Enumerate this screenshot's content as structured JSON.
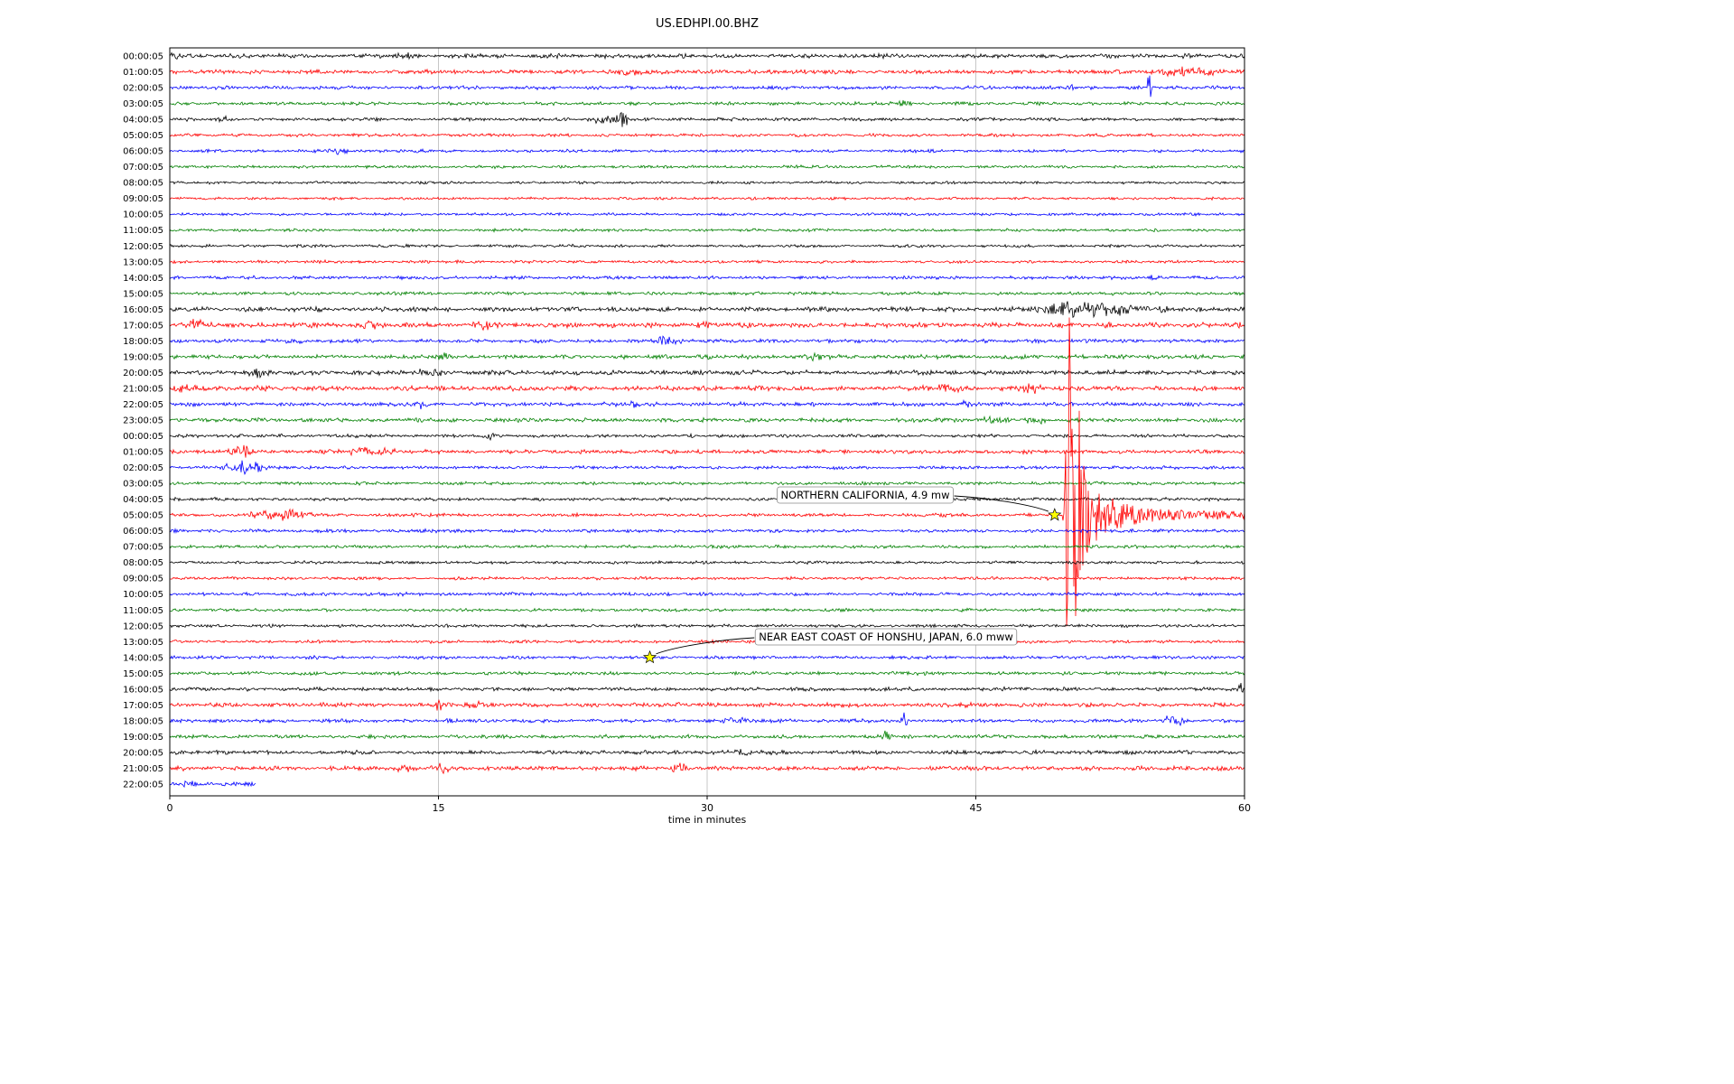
{
  "chart_data": {
    "type": "line",
    "subtype": "seismogram_helicorder_dayplot",
    "title": "US.EDHPI.00.BHZ",
    "xlabel": "time in minutes",
    "x_ticks": [
      0,
      15,
      30,
      45,
      60
    ],
    "xlim": [
      0,
      60
    ],
    "minutes_per_row": 60,
    "trace_color_cycle": [
      "#000000",
      "#ff0000",
      "#0000ff",
      "#008000"
    ],
    "grid_color": "#b9b9b9",
    "frame_color": "#000000",
    "star_color": "#ffff00",
    "rows": [
      {
        "label": "00:00:05",
        "amp": 2.5,
        "bursts": [
          [
            0.35,
            0.3,
            5
          ],
          [
            13.2,
            0.5,
            4
          ]
        ]
      },
      {
        "label": "01:00:05",
        "amp": 2.5,
        "bursts": [
          [
            26,
            0.7,
            6
          ],
          [
            56.6,
            1.0,
            7
          ],
          [
            58.2,
            0.4,
            5
          ]
        ]
      },
      {
        "label": "02:00:05",
        "amp": 2.2,
        "bursts": [
          [
            50,
            0.5,
            4
          ],
          [
            54.7,
            0.12,
            20
          ]
        ]
      },
      {
        "label": "03:00:05",
        "amp": 2.0,
        "bursts": [
          [
            41,
            0.4,
            5
          ]
        ]
      },
      {
        "label": "04:00:05",
        "amp": 2.0,
        "bursts": [
          [
            3,
            0.4,
            4
          ],
          [
            24.3,
            0.6,
            6
          ],
          [
            25.3,
            0.25,
            12
          ]
        ]
      },
      {
        "label": "05:00:05",
        "amp": 1.8,
        "bursts": []
      },
      {
        "label": "06:00:05",
        "amp": 1.8,
        "bursts": [
          [
            9.5,
            0.5,
            3
          ]
        ]
      },
      {
        "label": "07:00:05",
        "amp": 1.8,
        "bursts": []
      },
      {
        "label": "08:00:05",
        "amp": 1.6,
        "bursts": []
      },
      {
        "label": "09:00:05",
        "amp": 1.6,
        "bursts": []
      },
      {
        "label": "10:00:05",
        "amp": 1.7,
        "bursts": []
      },
      {
        "label": "11:00:05",
        "amp": 1.7,
        "bursts": []
      },
      {
        "label": "12:00:05",
        "amp": 1.7,
        "bursts": []
      },
      {
        "label": "13:00:05",
        "amp": 1.7,
        "bursts": []
      },
      {
        "label": "14:00:05",
        "amp": 2.0,
        "bursts": [
          [
            55,
            0.3,
            4
          ]
        ]
      },
      {
        "label": "15:00:05",
        "amp": 2.0,
        "bursts": []
      },
      {
        "label": "16:00:05",
        "amp": 2.8,
        "bursts": [
          [
            50.3,
            1.2,
            11
          ],
          [
            51.8,
            1.8,
            7
          ],
          [
            55.5,
            0.12,
            9
          ]
        ]
      },
      {
        "label": "17:00:05",
        "amp": 3.0,
        "bursts": [
          [
            1.5,
            0.7,
            6
          ],
          [
            11,
            0.5,
            5
          ],
          [
            17.5,
            0.4,
            5
          ],
          [
            30,
            0.5,
            5
          ]
        ]
      },
      {
        "label": "18:00:05",
        "amp": 2.2,
        "bursts": [
          [
            7,
            0.5,
            4
          ],
          [
            27.8,
            0.45,
            8
          ]
        ]
      },
      {
        "label": "19:00:05",
        "amp": 2.4,
        "bursts": [
          [
            15.3,
            0.6,
            6
          ],
          [
            30,
            0.5,
            5
          ],
          [
            36,
            0.6,
            5
          ]
        ]
      },
      {
        "label": "20:00:05",
        "amp": 2.8,
        "bursts": [
          [
            5,
            0.4,
            6
          ],
          [
            14.5,
            0.5,
            6
          ]
        ]
      },
      {
        "label": "21:00:05",
        "amp": 3.0,
        "bursts": [
          [
            0.8,
            0.6,
            7
          ],
          [
            43.5,
            0.6,
            6
          ],
          [
            48,
            0.5,
            6
          ]
        ]
      },
      {
        "label": "22:00:05",
        "amp": 2.4,
        "bursts": [
          [
            14,
            0.4,
            5
          ],
          [
            26,
            0.2,
            6
          ],
          [
            44.5,
            0.4,
            5
          ]
        ]
      },
      {
        "label": "23:00:05",
        "amp": 2.4,
        "bursts": [
          [
            46,
            0.5,
            5
          ],
          [
            48.5,
            0.4,
            6
          ]
        ]
      },
      {
        "label": "00:00:05",
        "amp": 2.0,
        "bursts": [
          [
            18,
            0.2,
            5
          ]
        ]
      },
      {
        "label": "01:00:05",
        "amp": 2.4,
        "bursts": [
          [
            4,
            0.5,
            8
          ],
          [
            10.8,
            1.4,
            5
          ]
        ]
      },
      {
        "label": "02:00:05",
        "amp": 2.0,
        "bursts": [
          [
            4.2,
            0.9,
            8
          ]
        ]
      },
      {
        "label": "03:00:05",
        "amp": 1.9,
        "bursts": []
      },
      {
        "label": "04:00:05",
        "amp": 1.9,
        "bursts": []
      },
      {
        "label": "05:00:05",
        "amp": 2.0,
        "bursts": [
          [
            6.3,
            1.2,
            7
          ]
        ]
      },
      {
        "label": "06:00:05",
        "amp": 2.0,
        "bursts": []
      },
      {
        "label": "07:00:05",
        "amp": 1.9,
        "bursts": []
      },
      {
        "label": "08:00:05",
        "amp": 1.8,
        "bursts": []
      },
      {
        "label": "09:00:05",
        "amp": 1.8,
        "bursts": []
      },
      {
        "label": "10:00:05",
        "amp": 2.0,
        "bursts": []
      },
      {
        "label": "11:00:05",
        "amp": 1.8,
        "bursts": []
      },
      {
        "label": "12:00:05",
        "amp": 1.8,
        "bursts": []
      },
      {
        "label": "13:00:05",
        "amp": 1.8,
        "bursts": []
      },
      {
        "label": "14:00:05",
        "amp": 2.0,
        "bursts": []
      },
      {
        "label": "15:00:05",
        "amp": 2.0,
        "bursts": []
      },
      {
        "label": "16:00:05",
        "amp": 2.2,
        "bursts": [
          [
            59.7,
            0.25,
            8
          ]
        ]
      },
      {
        "label": "17:00:05",
        "amp": 2.6,
        "bursts": [
          [
            15,
            0.15,
            9
          ],
          [
            17,
            0.4,
            5
          ]
        ]
      },
      {
        "label": "18:00:05",
        "amp": 2.2,
        "bursts": [
          [
            31.5,
            0.5,
            5
          ],
          [
            41,
            0.12,
            12
          ],
          [
            56,
            0.5,
            6
          ]
        ]
      },
      {
        "label": "19:00:05",
        "amp": 2.2,
        "bursts": [
          [
            40,
            0.15,
            9
          ]
        ]
      },
      {
        "label": "20:00:05",
        "amp": 2.4,
        "bursts": [
          [
            32,
            0.4,
            6
          ]
        ]
      },
      {
        "label": "21:00:05",
        "amp": 2.6,
        "bursts": [
          [
            13,
            0.4,
            6
          ],
          [
            15.2,
            0.3,
            7
          ],
          [
            28.5,
            0.4,
            5
          ]
        ]
      },
      {
        "label": "22:00:05",
        "amp": 2.4,
        "partial": 4.8,
        "bursts": [
          [
            1,
            0.5,
            4
          ]
        ]
      }
    ],
    "events": [
      {
        "label": "NORTHERN CALIFORNIA, 4.9 mw",
        "row_label": "05:00:05",
        "row_index": 29,
        "star_minute": 49.4,
        "label_xy": [
          958,
          548
        ],
        "envelope": {
          "p_onset": 49.85,
          "p_amp": 12,
          "onset": 49.95,
          "peak": 250,
          "sustain_until": 50.7,
          "fast_tau": 0.3,
          "coda_amp": 35,
          "coda_start": 51.3,
          "coda_tau": 2.2,
          "floor": 4.5,
          "neg_scale": 0.62
        }
      },
      {
        "label": "NEAR EAST COAST OF HONSHU, JAPAN, 6.0 mww",
        "row_label": "14:00:05",
        "row_index": 38,
        "star_minute": 26.8,
        "label_xy": [
          981,
          705
        ]
      }
    ]
  }
}
